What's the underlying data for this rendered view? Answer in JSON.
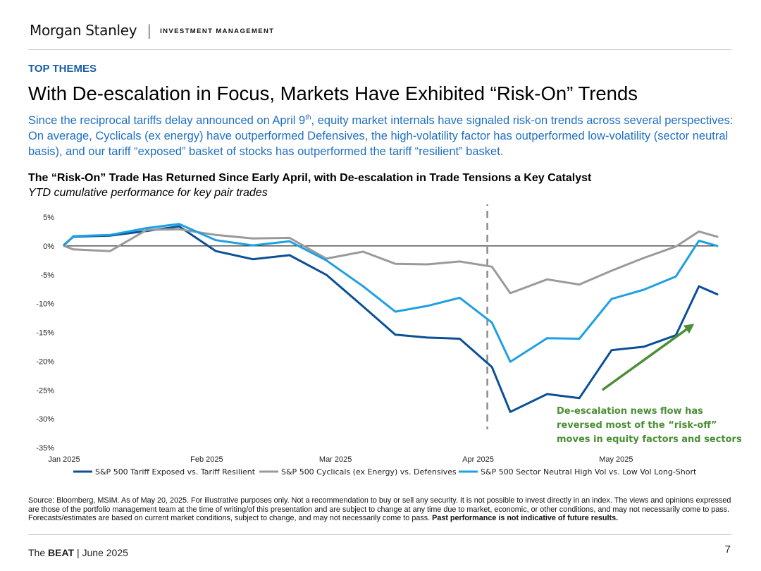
{
  "header": {
    "brand_name": "Morgan Stanley",
    "brand_separator": "|",
    "brand_unit": "INVESTMENT MANAGEMENT"
  },
  "section_tag": "TOP THEMES",
  "headline": "With De-escalation in Focus, Markets Have Exhibited “Risk-On” Trends",
  "subhead": {
    "part1": "Since the reciprocal tariffs delay announced on April 9",
    "sup": "th",
    "part2": ", equity market internals have signaled risk-on trends across several perspectives: On average, Cyclicals (ex energy) have outperformed Defensives, the high-volatility factor has outperformed low-volatility (sector neutral basis), and our tariff “exposed” basket of stocks has outperformed the tariff “resilient” basket."
  },
  "colors": {
    "accent": "#1a5ea8",
    "subhead": "#1f6fc4",
    "series_exposed": "#0b4f97",
    "series_cyclicals": "#9a9a9a",
    "series_highvol": "#1ea0e2",
    "annotation": "#4a8f34"
  },
  "chart_data": {
    "type": "line",
    "title": "The “Risk-On” Trade Has Returned Since Early April, with De-escalation in Trade Tensions a Key Catalyst",
    "subtitle": "YTD cumulative performance for key pair trades",
    "ylim": [
      -35,
      5
    ],
    "xlim": [
      "2025-01-01",
      "2025-05-23"
    ],
    "y_ticks": [
      5,
      0,
      -5,
      -10,
      -15,
      -20,
      -25,
      -30,
      -35
    ],
    "y_tick_labels": [
      "5%",
      "0%",
      "-5%",
      "-10%",
      "-15%",
      "-20%",
      "-25%",
      "-30%",
      "-35%"
    ],
    "x_ticks": [
      {
        "date": "2025-01-01",
        "label": "Jan 2025"
      },
      {
        "date": "2025-02-01",
        "label": "Feb 2025"
      },
      {
        "date": "2025-03-01",
        "label": "Mar 2025"
      },
      {
        "date": "2025-04-01",
        "label": "Apr 2025"
      },
      {
        "date": "2025-05-01",
        "label": "May 2025"
      }
    ],
    "zero_line": true,
    "legend_position": "bottom",
    "vertical_marker": {
      "date": "2025-04-03",
      "style": "dashed"
    },
    "series": [
      {
        "name": "S&P 500 Tariff Exposed vs. Tariff Resilient",
        "color": "#0b4f97",
        "points": [
          [
            "2025-01-01",
            0.2
          ],
          [
            "2025-01-03",
            1.6
          ],
          [
            "2025-01-11",
            1.8
          ],
          [
            "2025-01-19",
            2.6
          ],
          [
            "2025-01-26",
            3.4
          ],
          [
            "2025-02-03",
            -0.9
          ],
          [
            "2025-02-11",
            -2.3
          ],
          [
            "2025-02-19",
            -1.6
          ],
          [
            "2025-02-27",
            -5.0
          ],
          [
            "2025-03-07",
            -10.5
          ],
          [
            "2025-03-14",
            -15.4
          ],
          [
            "2025-03-21",
            -15.9
          ],
          [
            "2025-03-28",
            -16.1
          ],
          [
            "2025-04-04",
            -21.0
          ],
          [
            "2025-04-08",
            -28.8
          ],
          [
            "2025-04-16",
            -25.7
          ],
          [
            "2025-04-23",
            -26.4
          ],
          [
            "2025-04-30",
            -18.1
          ],
          [
            "2025-05-07",
            -17.5
          ],
          [
            "2025-05-14",
            -15.5
          ],
          [
            "2025-05-19",
            -7.0
          ],
          [
            "2025-05-23",
            -8.4
          ]
        ]
      },
      {
        "name": "S&P 500 Cyclicals (ex Energy) vs. Defensives",
        "color": "#9a9a9a",
        "points": [
          [
            "2025-01-01",
            0.0
          ],
          [
            "2025-01-03",
            -0.6
          ],
          [
            "2025-01-11",
            -0.9
          ],
          [
            "2025-01-19",
            2.8
          ],
          [
            "2025-01-26",
            2.9
          ],
          [
            "2025-02-03",
            1.9
          ],
          [
            "2025-02-11",
            1.3
          ],
          [
            "2025-02-19",
            1.4
          ],
          [
            "2025-02-27",
            -2.2
          ],
          [
            "2025-03-07",
            -1.0
          ],
          [
            "2025-03-14",
            -3.1
          ],
          [
            "2025-03-21",
            -3.2
          ],
          [
            "2025-03-28",
            -2.7
          ],
          [
            "2025-04-04",
            -3.6
          ],
          [
            "2025-04-08",
            -8.2
          ],
          [
            "2025-04-16",
            -5.8
          ],
          [
            "2025-04-23",
            -6.7
          ],
          [
            "2025-04-30",
            -4.3
          ],
          [
            "2025-05-07",
            -2.1
          ],
          [
            "2025-05-14",
            -0.1
          ],
          [
            "2025-05-19",
            2.5
          ],
          [
            "2025-05-23",
            1.6
          ]
        ]
      },
      {
        "name": "S&P 500 Sector Neutral High Vol vs. Low Vol Long-Short",
        "color": "#1ea0e2",
        "points": [
          [
            "2025-01-01",
            0.1
          ],
          [
            "2025-01-03",
            1.7
          ],
          [
            "2025-01-11",
            1.9
          ],
          [
            "2025-01-19",
            3.1
          ],
          [
            "2025-01-26",
            3.8
          ],
          [
            "2025-02-03",
            1.0
          ],
          [
            "2025-02-11",
            0.1
          ],
          [
            "2025-02-19",
            0.8
          ],
          [
            "2025-02-27",
            -2.5
          ],
          [
            "2025-03-07",
            -7.0
          ],
          [
            "2025-03-14",
            -11.4
          ],
          [
            "2025-03-21",
            -10.4
          ],
          [
            "2025-03-28",
            -9.0
          ],
          [
            "2025-04-04",
            -13.3
          ],
          [
            "2025-04-08",
            -20.1
          ],
          [
            "2025-04-16",
            -16.0
          ],
          [
            "2025-04-23",
            -16.1
          ],
          [
            "2025-04-30",
            -9.2
          ],
          [
            "2025-05-07",
            -7.6
          ],
          [
            "2025-05-14",
            -5.3
          ],
          [
            "2025-05-19",
            0.9
          ],
          [
            "2025-05-23",
            0.0
          ]
        ]
      }
    ],
    "annotation": {
      "lines": [
        "De-escalation news flow has",
        "reversed most of the “risk-off”",
        "moves in equity factors and sectors"
      ],
      "arrow": {
        "from": [
          "2025-04-28",
          -25.0
        ],
        "to": [
          "2025-05-18",
          -13.5
        ]
      }
    }
  },
  "footnote": {
    "text": "Source: Bloomberg, MSIM. As of May 20, 2025. For illustrative purposes only. Not a recommendation to buy or sell any security. It is not possible to invest directly in an index. The views and opinions expressed are those of the portfolio management team at the time of writing/of this presentation and are subject to change at any time due to market, economic, or other conditions, and may not necessarily come to pass.  Forecasts/estimates are based on current market conditions, subject to change, and may not necessarily come to pass. ",
    "bold": "Past performance is not indicative of future results."
  },
  "footer": {
    "prefix": "The ",
    "bold": "BEAT",
    "suffix": " | June 2025",
    "page": "7"
  }
}
